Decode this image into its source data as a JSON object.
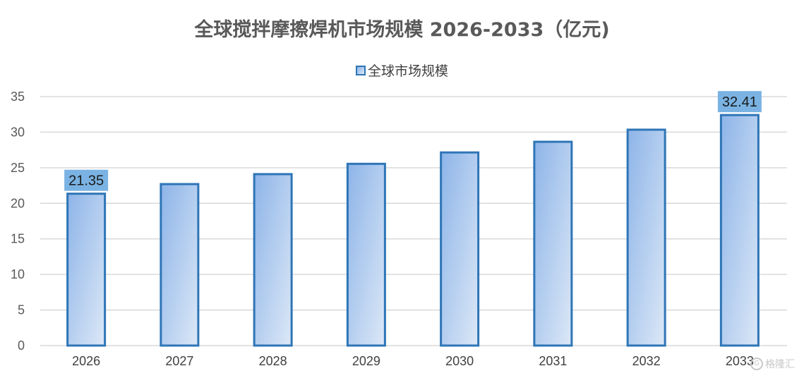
{
  "title": "全球搅拌摩擦焊机市场规模 2026-2033（亿元)",
  "legend": {
    "label": "全球市场规模"
  },
  "watermark": {
    "text": "格隆汇",
    "icon": "G"
  },
  "colors": {
    "bar_border": "#2e75b6",
    "bar_fill_top": "#8db4e8",
    "bar_fill_bottom": "#dce8f7",
    "label_bg": "#7ab3e3",
    "grid": "#d9d9d9",
    "axis_text": "#595959"
  },
  "chart_data": {
    "type": "bar",
    "title": "全球搅拌摩擦焊机市场规模 2026-2033（亿元)",
    "categories": [
      "2026",
      "2027",
      "2028",
      "2029",
      "2030",
      "2031",
      "2032",
      "2033"
    ],
    "series": [
      {
        "name": "全球市场规模",
        "values": [
          21.35,
          22.7,
          24.1,
          25.55,
          27.15,
          28.65,
          30.35,
          32.41
        ]
      }
    ],
    "data_labels": [
      {
        "category": "2026",
        "text": "21.35"
      },
      {
        "category": "2033",
        "text": "32.41"
      }
    ],
    "ylim": [
      0,
      35
    ],
    "yticks": [
      "0",
      "5",
      "10",
      "15",
      "20",
      "25",
      "30",
      "35"
    ],
    "xlabel": "",
    "ylabel": "",
    "grid": true,
    "legend_position": "top-center"
  }
}
